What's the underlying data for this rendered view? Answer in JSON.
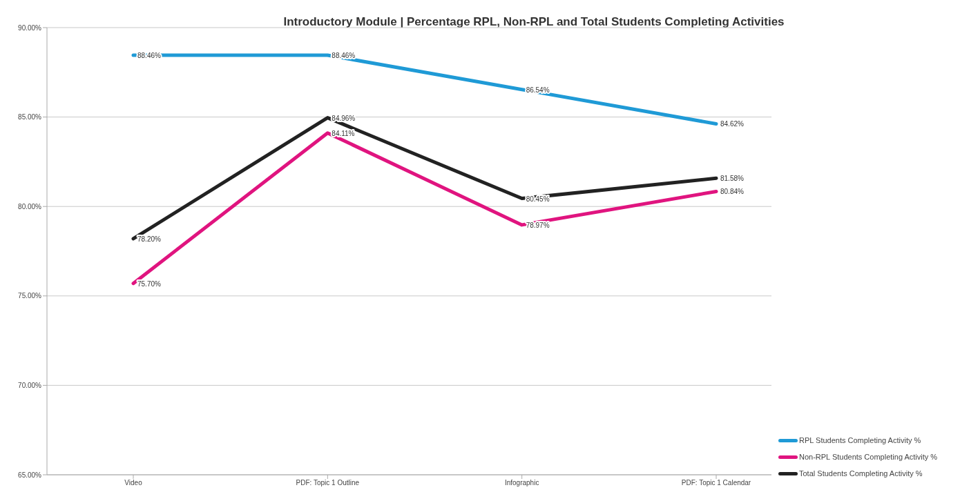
{
  "chart_data": {
    "type": "line",
    "title": "Introductory Module | Percentage RPL, Non-RPL and Total Students Completing Activities",
    "categories": [
      "Video",
      "PDF: Topic 1 Outline",
      "Infographic",
      "PDF: Topic 1 Calendar"
    ],
    "series": [
      {
        "name": "RPL Students Completing Activity %",
        "color": "#1f9ad6",
        "values": [
          88.46,
          88.46,
          86.54,
          84.62
        ],
        "value_labels": [
          "88.46%",
          "88.46%",
          "86.54%",
          "84.62%"
        ]
      },
      {
        "name": "Non-RPL Students Completing Activity %",
        "color": "#e0147f",
        "values": [
          75.7,
          84.11,
          78.97,
          80.84
        ],
        "value_labels": [
          "75.70%",
          "84.11%",
          "78.97%",
          "80.84%"
        ]
      },
      {
        "name": "Total Students Completing Activity %",
        "color": "#222222",
        "values": [
          78.2,
          84.96,
          80.45,
          81.58
        ],
        "value_labels": [
          "78.20%",
          "84.96%",
          "80.45%",
          "81.58%"
        ]
      }
    ],
    "ylim": [
      65,
      90
    ],
    "yticks": [
      {
        "value": 65,
        "label": "65.00%"
      },
      {
        "value": 70,
        "label": "70.00%"
      },
      {
        "value": 75,
        "label": "75.00%"
      },
      {
        "value": 80,
        "label": "80.00%"
      },
      {
        "value": 85,
        "label": "85.00%"
      },
      {
        "value": 90,
        "label": "90.00%"
      }
    ],
    "grid": "y",
    "legend": "bottom right",
    "marker": "none",
    "line_style": "solid"
  }
}
